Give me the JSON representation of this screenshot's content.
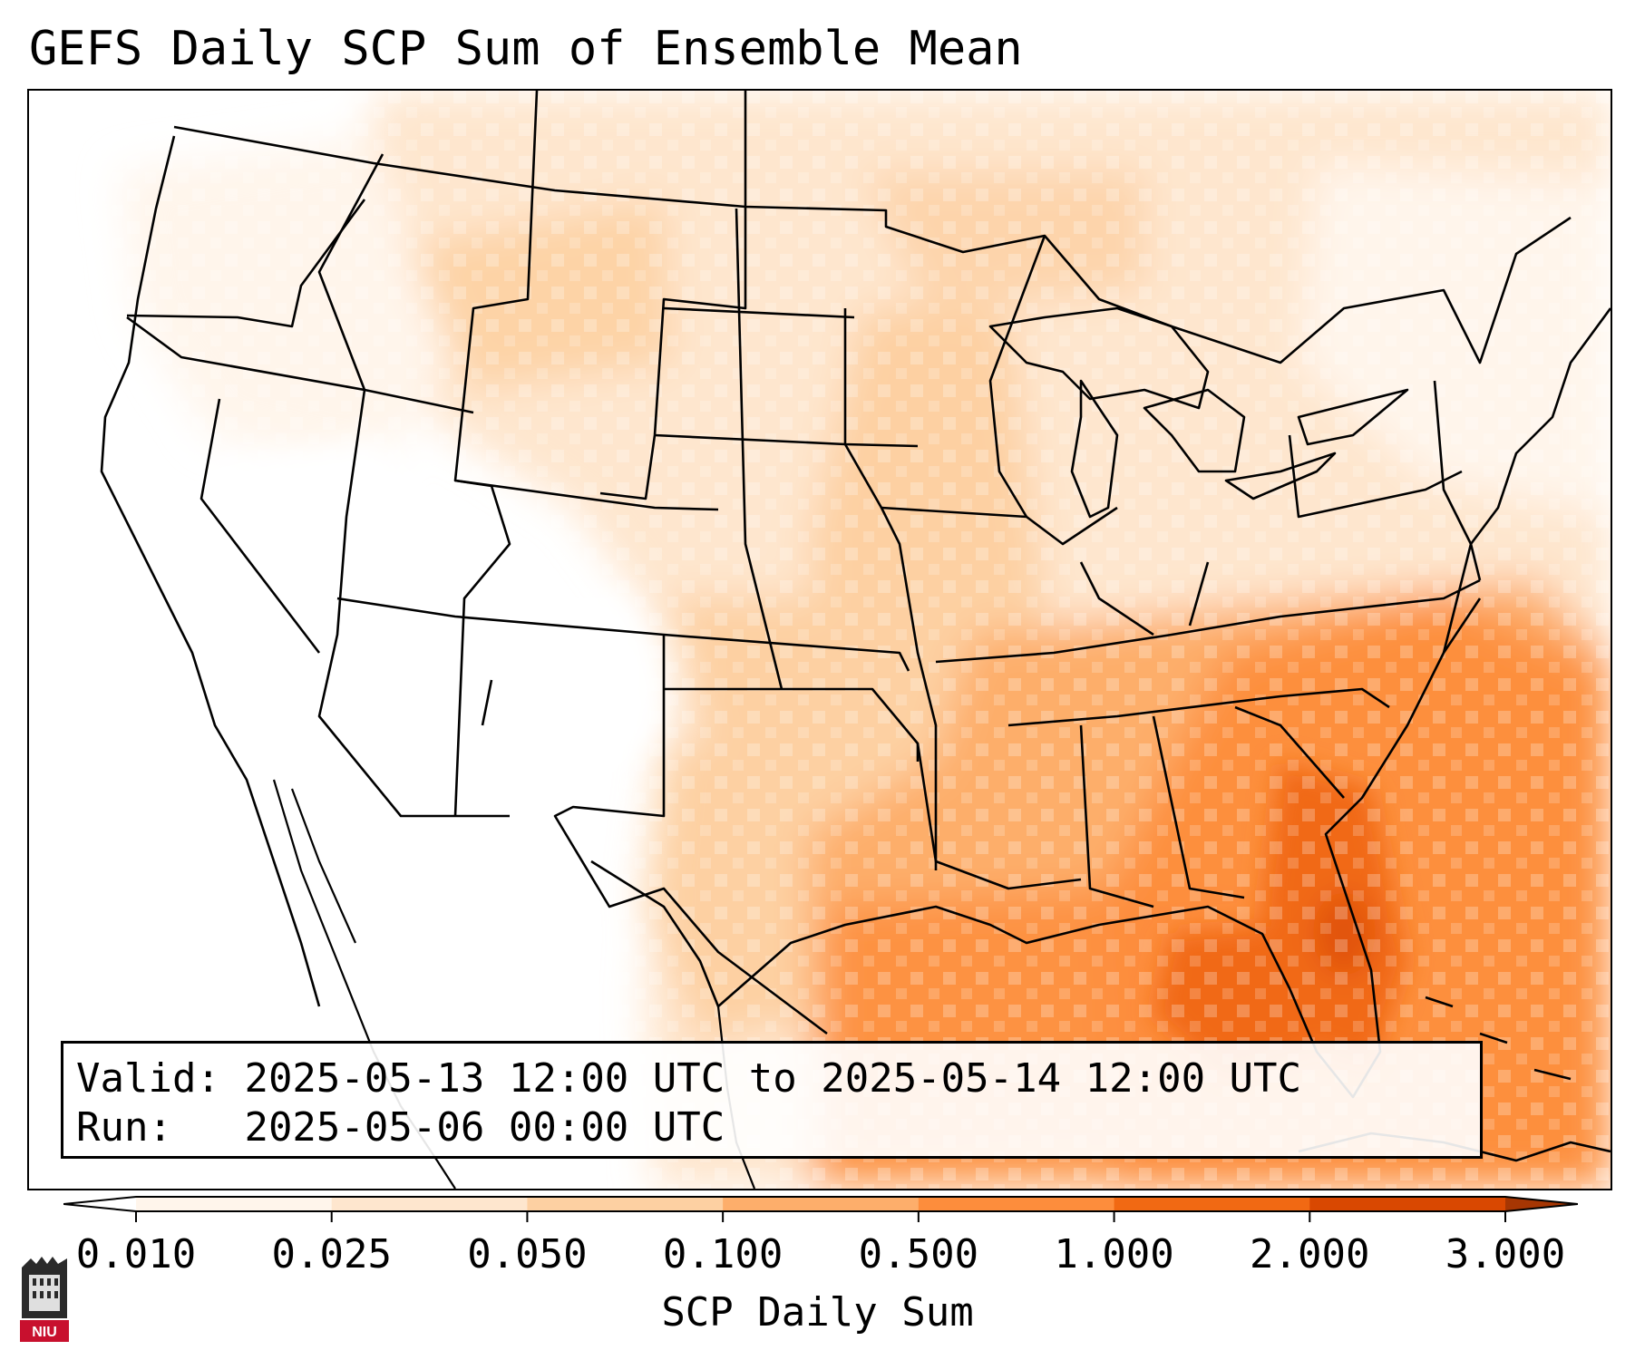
{
  "title": "GEFS Daily SCP Sum of Ensemble Mean",
  "info": {
    "valid_label": "Valid:",
    "valid_value": "2025-05-13 12:00 UTC to 2025-05-14 12:00 UTC",
    "run_label": "Run:",
    "run_value": "2025-05-06 00:00 UTC"
  },
  "colorbar": {
    "label": "SCP Daily Sum",
    "levels": [
      "0.010",
      "0.025",
      "0.050",
      "0.100",
      "0.500",
      "1.000",
      "2.000",
      "3.000"
    ],
    "colors": [
      "#fff5eb",
      "#fee6ce",
      "#fdd0a2",
      "#fdae6b",
      "#fd8d3c",
      "#f16913",
      "#d94801"
    ],
    "under_color": "#ffffff",
    "over_color": "#a63603",
    "extend": "both"
  },
  "map": {
    "region": "CONUS and Gulf of Mexico",
    "projection": "Lambert Conformal",
    "field": "SCP daily sum (ensemble mean)"
  },
  "logo": {
    "text": "NIU",
    "name": "niu-logo"
  }
}
